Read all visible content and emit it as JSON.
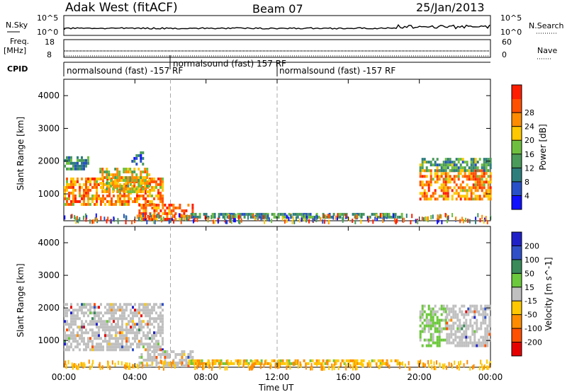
{
  "header": {
    "title": "Adak West (fitACF)",
    "beam": "Beam 07",
    "date": "25/Jan/2013"
  },
  "top_panels": {
    "nsky_label": "N.Sky",
    "nsky_ticks": [
      "10^5",
      "10^0"
    ],
    "nsearch_label": "N.Search",
    "nsearch_ticks": [
      "10^5",
      "10^0"
    ],
    "freq_label_1": "Freq.",
    "freq_label_2": "[MHz]",
    "freq_ticks": [
      "18",
      "8"
    ],
    "nave_label": "Nave",
    "nave_ticks": [
      "60",
      "0"
    ],
    "cpid_label": "CPID",
    "cpid_segments": [
      {
        "text": "normalsound (fast) -157 RF",
        "start_hour": 0,
        "end_hour": 6
      },
      {
        "text": "normalsound (fast) 157 RF",
        "start_hour": 6,
        "end_hour": 12
      },
      {
        "text": "normalsound (fast) -157 RF",
        "start_hour": 12,
        "end_hour": 24
      }
    ]
  },
  "chart_data": [
    {
      "type": "heatmap",
      "name": "power",
      "ylabel": "Slant Range [km]",
      "xlabel": "Time UT",
      "xlim_hours": [
        0,
        24
      ],
      "ylim": [
        180,
        4500
      ],
      "y_ticks": [
        1000,
        2000,
        3000,
        4000
      ],
      "x_ticks": [
        "00:00",
        "04:00",
        "08:00",
        "12:00",
        "16:00",
        "20:00",
        "00:00"
      ],
      "colorbar_label": "Power [dB]",
      "colorbar_ticks": [
        "4",
        "8",
        "12",
        "16",
        "20",
        "24",
        "28"
      ],
      "colorbar_colors": [
        "#1010ff",
        "#2850c8",
        "#2e7d7d",
        "#4a9a5a",
        "#6fbf3f",
        "#ffc800",
        "#ff8c00",
        "#ff5000",
        "#ff1e00"
      ],
      "echo_regions": [
        {
          "t0": 0.0,
          "t1": 1.4,
          "r0": 1800,
          "r1": 2150,
          "value": 10
        },
        {
          "t0": 0.0,
          "t1": 5.6,
          "r0": 700,
          "r1": 1500,
          "value": 22
        },
        {
          "t0": 2.0,
          "t1": 4.8,
          "r0": 1100,
          "r1": 1800,
          "value": 18
        },
        {
          "t0": 4.2,
          "t1": 7.2,
          "r0": 250,
          "r1": 700,
          "value": 24
        },
        {
          "t0": 3.8,
          "t1": 4.5,
          "r0": 1950,
          "r1": 2300,
          "value": 8
        },
        {
          "t0": 7.0,
          "t1": 19.0,
          "r0": 250,
          "r1": 420,
          "value": 10
        },
        {
          "t0": 20.0,
          "t1": 24.0,
          "r0": 800,
          "r1": 1750,
          "value": 22
        },
        {
          "t0": 20.0,
          "t1": 24.0,
          "r0": 1750,
          "r1": 2100,
          "value": 12
        }
      ]
    },
    {
      "type": "heatmap",
      "name": "velocity",
      "ylabel": "Slant Range [km]",
      "xlabel": "Time UT",
      "xlim_hours": [
        0,
        24
      ],
      "ylim": [
        180,
        4500
      ],
      "y_ticks": [
        1000,
        2000,
        3000,
        4000
      ],
      "x_ticks": [
        "00:00",
        "04:00",
        "08:00",
        "12:00",
        "16:00",
        "20:00",
        "00:00"
      ],
      "colorbar_label": "Velocity [m s^-1]",
      "colorbar_ticks": [
        "200",
        "100",
        "50",
        "15",
        "-15",
        "-50",
        "-100",
        "-200"
      ],
      "colorbar_colors": [
        "#2020c8",
        "#3050c8",
        "#3a8a5a",
        "#6cc83c",
        "#c0c0c0",
        "#ffc800",
        "#ff8c00",
        "#ff5000",
        "#e60000"
      ],
      "echo_regions": [
        {
          "t0": 0.0,
          "t1": 5.6,
          "r0": 700,
          "r1": 2150,
          "value": 0
        },
        {
          "t0": 4.2,
          "t1": 7.2,
          "r0": 250,
          "r1": 700,
          "value": 0
        },
        {
          "t0": 7.0,
          "t1": 19.0,
          "r0": 250,
          "r1": 420,
          "value": -40
        },
        {
          "t0": 20.0,
          "t1": 21.5,
          "r0": 800,
          "r1": 2100,
          "value": 40
        },
        {
          "t0": 21.5,
          "t1": 24.0,
          "r0": 800,
          "r1": 2100,
          "value": 0
        }
      ]
    }
  ]
}
